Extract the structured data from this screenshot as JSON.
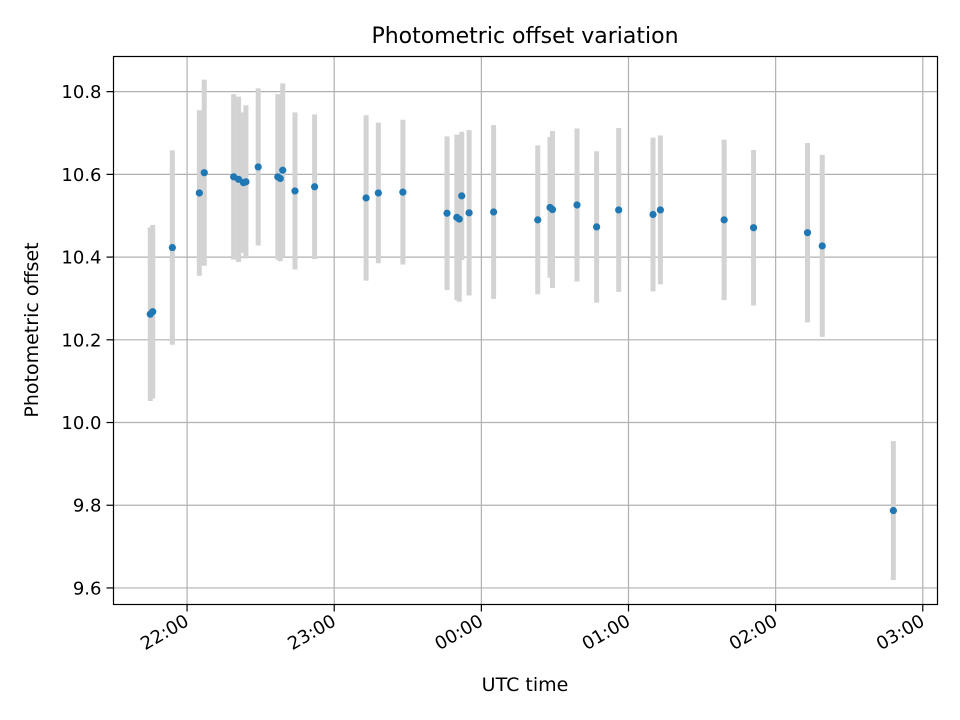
{
  "chart_data": {
    "type": "scatter",
    "title": "Photometric offset variation",
    "xlabel": "UTC time",
    "ylabel": "Photometric offset",
    "x_axis_type": "time",
    "x_tick_labels": [
      "22:00",
      "23:00",
      "00:00",
      "01:00",
      "02:00",
      "03:00"
    ],
    "x_ticks": [
      "22:00",
      "23:00",
      "24:00",
      "25:00",
      "26:00",
      "27:00"
    ],
    "xlim": [
      "21:30",
      "27:06"
    ],
    "y_tick_labels": [
      "9.6",
      "9.8",
      "10.0",
      "10.2",
      "10.4",
      "10.6",
      "10.8"
    ],
    "y_ticks": [
      9.6,
      9.8,
      10.0,
      10.2,
      10.4,
      10.6,
      10.8
    ],
    "ylim": [
      9.56,
      10.885
    ],
    "grid": true,
    "marker_color": "#1f77b4",
    "errorbar_color": "#d3d3d3",
    "points": [
      {
        "t": "21:45",
        "y": 10.262,
        "err": 0.21
      },
      {
        "t": "21:46",
        "y": 10.268,
        "err": 0.21
      },
      {
        "t": "21:54",
        "y": 10.423,
        "err": 0.235
      },
      {
        "t": "22:05",
        "y": 10.555,
        "err": 0.2
      },
      {
        "t": "22:07",
        "y": 10.604,
        "err": 0.225
      },
      {
        "t": "22:19",
        "y": 10.594,
        "err": 0.2
      },
      {
        "t": "22:21",
        "y": 10.588,
        "err": 0.2
      },
      {
        "t": "22:23",
        "y": 10.58,
        "err": 0.17
      },
      {
        "t": "22:24",
        "y": 10.582,
        "err": 0.185
      },
      {
        "t": "22:29",
        "y": 10.618,
        "err": 0.19
      },
      {
        "t": "22:37",
        "y": 10.594,
        "err": 0.2
      },
      {
        "t": "22:38",
        "y": 10.59,
        "err": 0.2
      },
      {
        "t": "22:39",
        "y": 10.61,
        "err": 0.21
      },
      {
        "t": "22:44",
        "y": 10.56,
        "err": 0.19
      },
      {
        "t": "22:52",
        "y": 10.57,
        "err": 0.175
      },
      {
        "t": "23:13",
        "y": 10.543,
        "err": 0.2
      },
      {
        "t": "23:18",
        "y": 10.555,
        "err": 0.17
      },
      {
        "t": "23:28",
        "y": 10.557,
        "err": 0.175
      },
      {
        "t": "23:46",
        "y": 10.506,
        "err": 0.186
      },
      {
        "t": "23:50",
        "y": 10.496,
        "err": 0.2
      },
      {
        "t": "23:51",
        "y": 10.492,
        "err": 0.2
      },
      {
        "t": "23:52",
        "y": 10.548,
        "err": 0.155
      },
      {
        "t": "23:55",
        "y": 10.507,
        "err": 0.2
      },
      {
        "t": "24:05",
        "y": 10.509,
        "err": 0.21
      },
      {
        "t": "24:23",
        "y": 10.49,
        "err": 0.18
      },
      {
        "t": "24:28",
        "y": 10.52,
        "err": 0.17
      },
      {
        "t": "24:29",
        "y": 10.515,
        "err": 0.19
      },
      {
        "t": "24:39",
        "y": 10.526,
        "err": 0.185
      },
      {
        "t": "24:47",
        "y": 10.473,
        "err": 0.183
      },
      {
        "t": "24:56",
        "y": 10.514,
        "err": 0.198
      },
      {
        "t": "25:10",
        "y": 10.503,
        "err": 0.186
      },
      {
        "t": "25:13",
        "y": 10.514,
        "err": 0.18
      },
      {
        "t": "25:39",
        "y": 10.49,
        "err": 0.194
      },
      {
        "t": "25:51",
        "y": 10.471,
        "err": 0.188
      },
      {
        "t": "26:13",
        "y": 10.459,
        "err": 0.217
      },
      {
        "t": "26:19",
        "y": 10.427,
        "err": 0.22
      },
      {
        "t": "26:48",
        "y": 9.787,
        "err": 0.168
      }
    ]
  }
}
